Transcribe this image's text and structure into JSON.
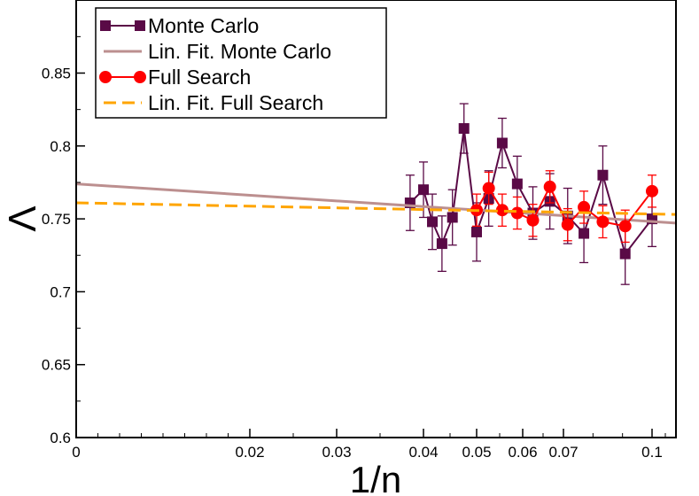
{
  "chart_data": {
    "type": "line",
    "title": "",
    "xlabel": "1/n",
    "ylabel": "Λ",
    "xlim": [
      0,
      0.11
    ],
    "ylim": [
      0.6,
      0.9
    ],
    "x_scale": "nonlinear (ticks at 0, 0.02, 0.03, 0.04, 0.05, 0.06, 0.07, 0.1)",
    "x_ticks": [
      0,
      0.02,
      0.03,
      0.04,
      0.05,
      0.06,
      0.07,
      0.1
    ],
    "x_tick_labels": [
      "0",
      "0.02",
      "0.03",
      "0.04",
      "0.05",
      "0.06",
      "0.07",
      "0.1"
    ],
    "y_ticks": [
      0.6,
      0.65,
      0.7,
      0.75,
      0.8,
      0.85
    ],
    "y_tick_labels": [
      "0.6",
      "0.65",
      "0.7",
      "0.75",
      "0.8",
      "0.85"
    ],
    "legend_position": "top-left",
    "series": [
      {
        "name": "Monte Carlo",
        "style": "line-square-markers",
        "color": "#5a0a46",
        "errorbar_color": "#5a0a46",
        "x": [
          0.03846,
          0.04,
          0.04167,
          0.04348,
          0.04545,
          0.04762,
          0.05,
          0.05263,
          0.05556,
          0.05882,
          0.0625,
          0.06667,
          0.07143,
          0.07692,
          0.08333,
          0.09091,
          0.1
        ],
        "y": [
          0.761,
          0.77,
          0.748,
          0.733,
          0.751,
          0.812,
          0.741,
          0.764,
          0.802,
          0.774,
          0.754,
          0.762,
          0.752,
          0.74,
          0.78,
          0.726,
          0.75
        ],
        "err": [
          0.019,
          0.019,
          0.019,
          0.019,
          0.019,
          0.017,
          0.02,
          0.019,
          0.017,
          0.019,
          0.018,
          0.019,
          0.019,
          0.02,
          0.02,
          0.021,
          0.019
        ]
      },
      {
        "name": "Lin. Fit. Monte Carlo",
        "style": "solid-line",
        "color": "#bc8f8f",
        "x": [
          0,
          0.11
        ],
        "y": [
          0.774,
          0.747
        ]
      },
      {
        "name": "Full Search",
        "style": "line-circle-markers",
        "color": "#ff0000",
        "errorbar_color": "#ff0000",
        "x": [
          0.05,
          0.05263,
          0.05556,
          0.05882,
          0.0625,
          0.06667,
          0.07143,
          0.07692,
          0.08333,
          0.09091,
          0.1
        ],
        "y": [
          0.756,
          0.771,
          0.756,
          0.754,
          0.749,
          0.772,
          0.746,
          0.758,
          0.748,
          0.745,
          0.769
        ],
        "err": [
          0.011,
          0.011,
          0.011,
          0.011,
          0.011,
          0.011,
          0.011,
          0.011,
          0.011,
          0.011,
          0.011
        ]
      },
      {
        "name": "Lin. Fit. Full Search",
        "style": "dashed-line",
        "color": "#ffa500",
        "x": [
          0,
          0.11
        ],
        "y": [
          0.761,
          0.753
        ]
      }
    ]
  }
}
